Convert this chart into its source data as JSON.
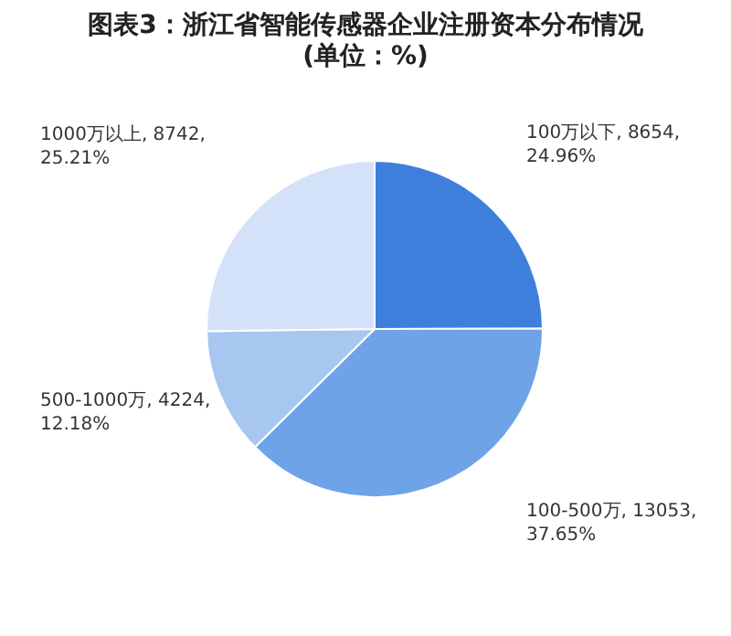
{
  "chart_data": {
    "type": "pie",
    "title": "图表3：浙江省智能传感器企业注册资本分布情况\n(单位：%)",
    "categories": [
      "100万以下",
      "100-500万",
      "500-1000万",
      "1000万以上"
    ],
    "values": [
      8654,
      13053,
      4224,
      8742
    ],
    "value_labels": [
      "8654,\n24.96%",
      "13053,\n37.65%",
      "4224,\n12.18%",
      "8742,\n25.21%"
    ],
    "colors": [
      "#3f7fdc",
      "#6fa3e8",
      "#a7c6f0",
      "#d3e2f8"
    ]
  }
}
